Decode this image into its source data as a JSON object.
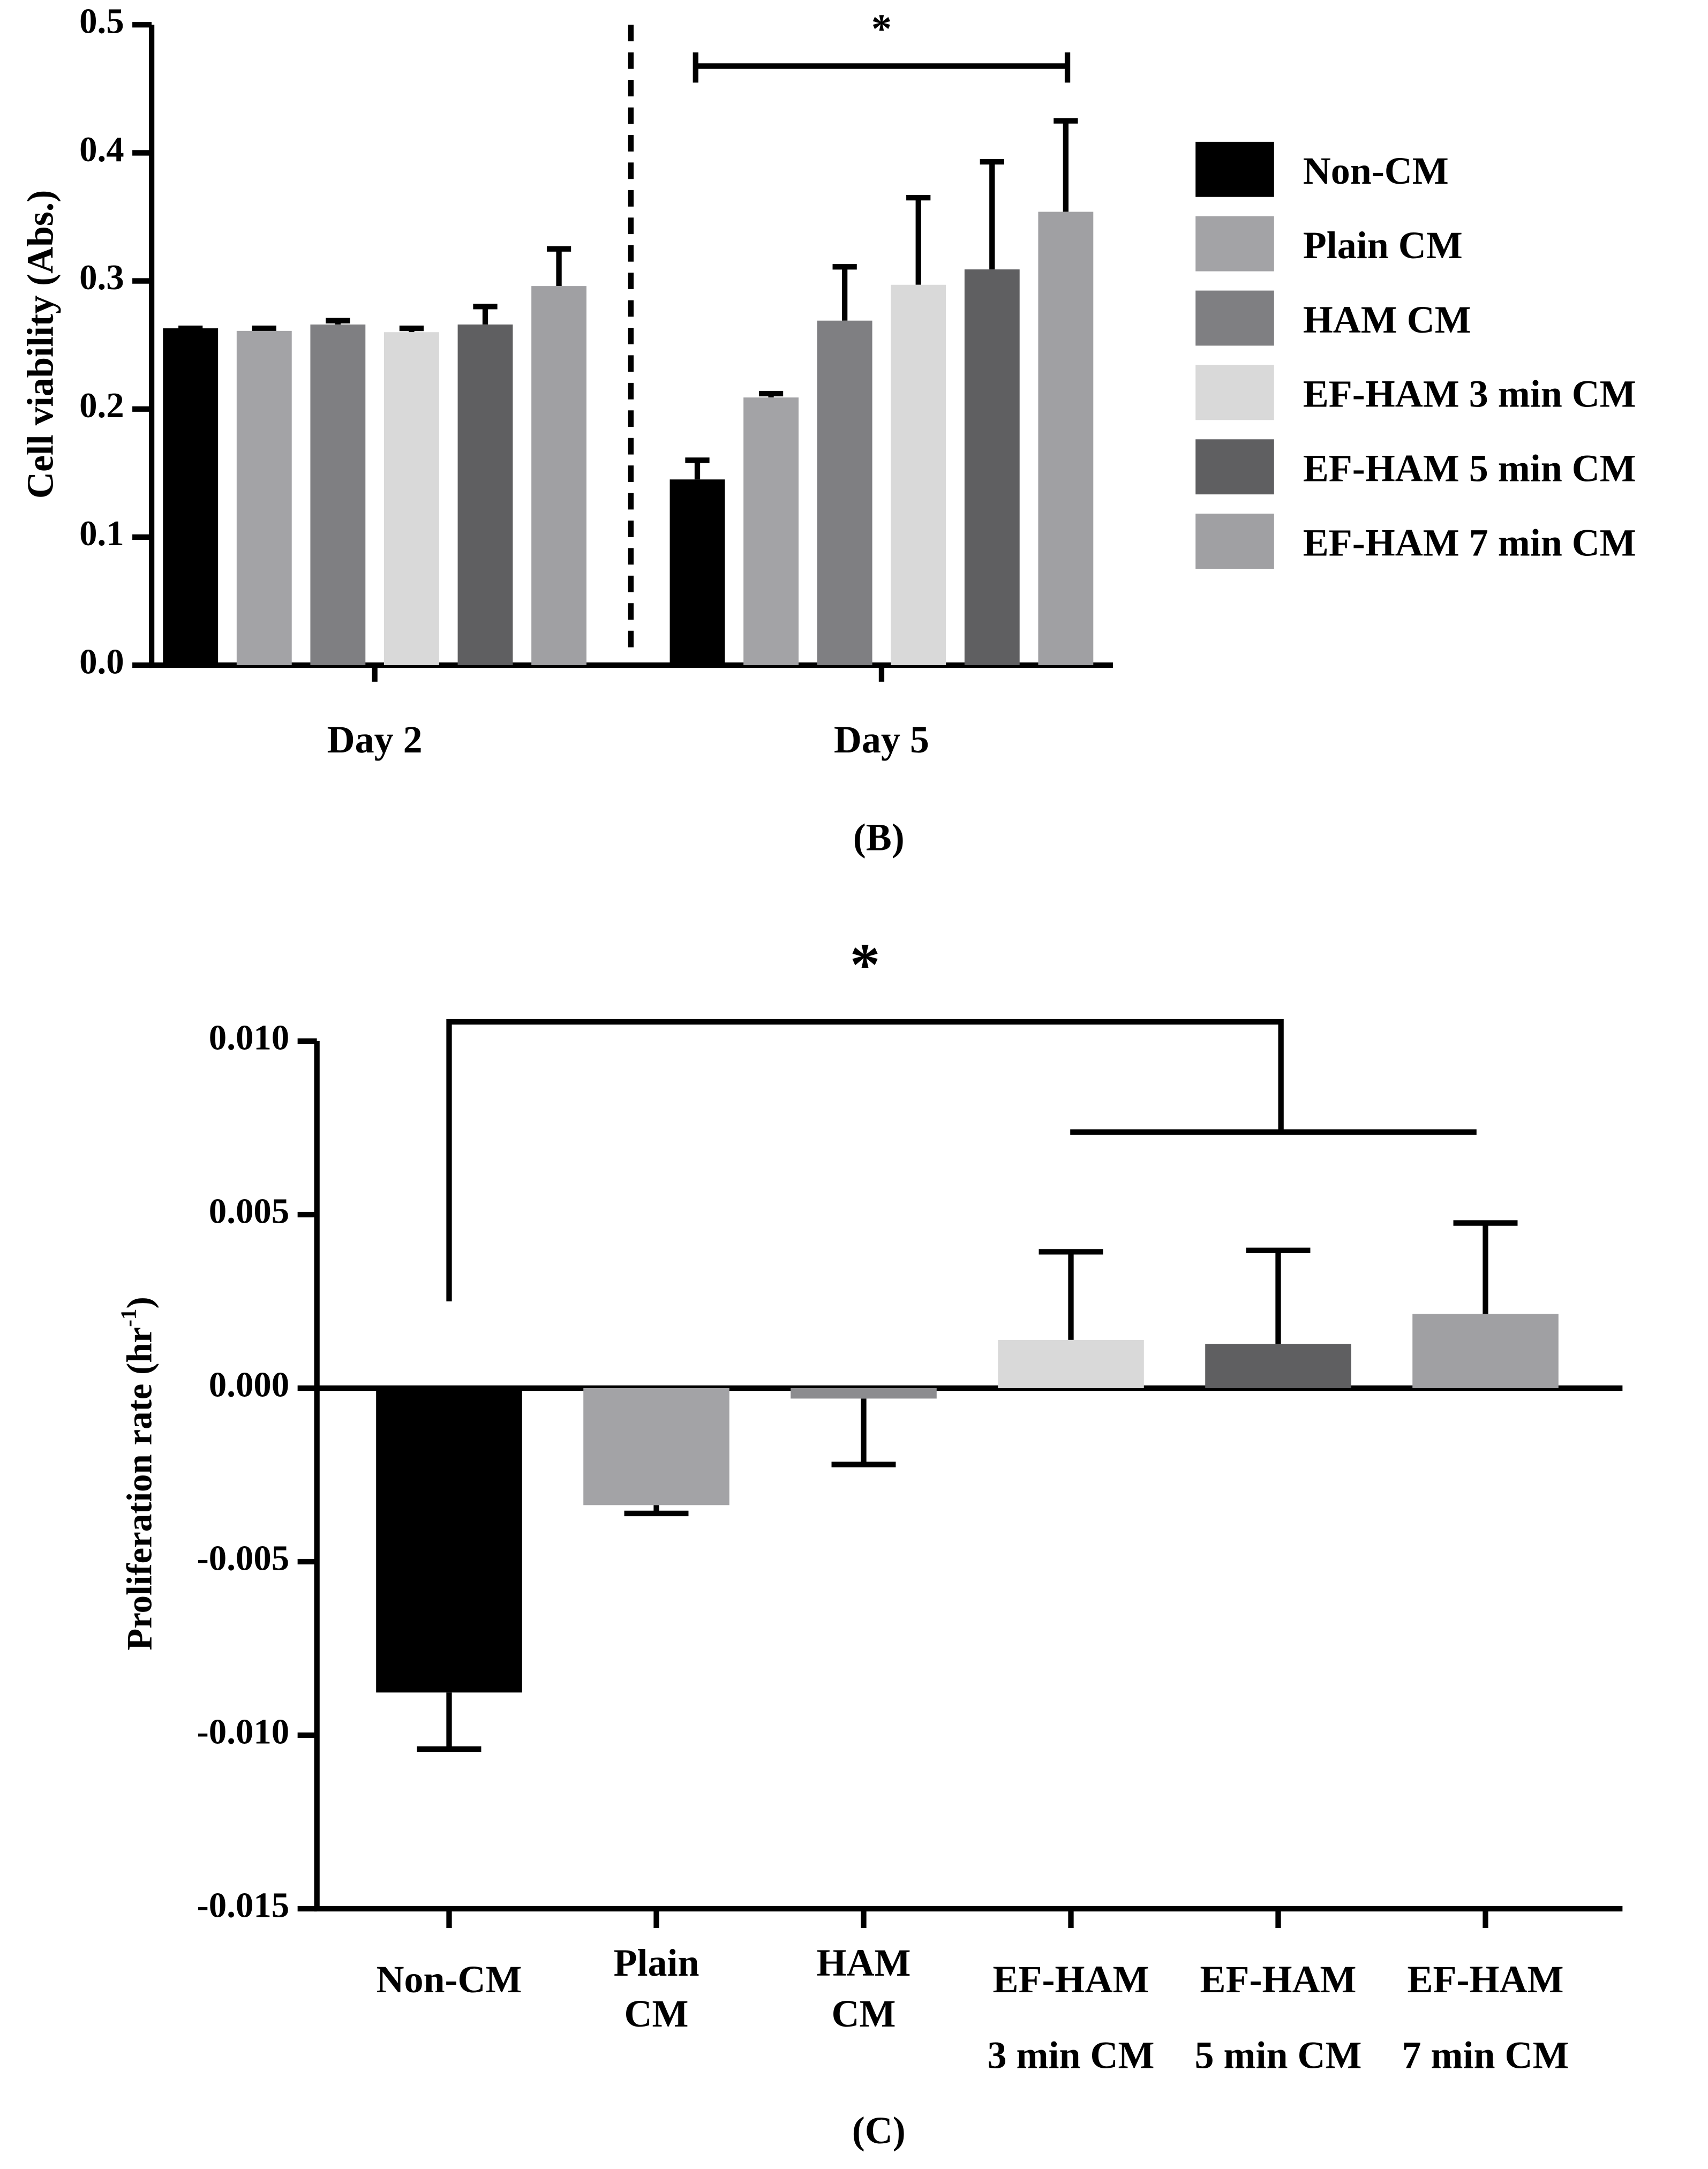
{
  "chart_data": [
    {
      "type": "bar",
      "y_label": "Cell viability (Abs.)",
      "caption": "(B)",
      "categories": [
        "Day 2",
        "Day 5"
      ],
      "series": [
        {
          "name": "Non-CM",
          "color": "#000000",
          "values": [
            0.263,
            0.145
          ],
          "errors": [
            0,
            0.015
          ]
        },
        {
          "name": "Plain CM",
          "color": "#a3a3a6",
          "values": [
            0.261,
            0.209
          ],
          "errors": [
            0.002,
            0.003
          ]
        },
        {
          "name": "HAM CM",
          "color": "#7f7f82",
          "values": [
            0.266,
            0.269
          ],
          "errors": [
            0.003,
            0.042
          ]
        },
        {
          "name": "EF-HAM 3 min CM",
          "color": "#d9d9d9",
          "values": [
            0.26,
            0.297
          ],
          "errors": [
            0.003,
            0.068
          ]
        },
        {
          "name": "EF-HAM 5 min CM",
          "color": "#5f5f61",
          "values": [
            0.266,
            0.309
          ],
          "errors": [
            0.014,
            0.084
          ]
        },
        {
          "name": "EF-HAM 7 min CM",
          "color": "#a0a0a3",
          "values": [
            0.296,
            0.354
          ],
          "errors": [
            0.029,
            0.071
          ]
        }
      ],
      "ylim": [
        0,
        0.5
      ],
      "yticks": [
        {
          "value": 0,
          "label": "0.0"
        },
        0.1,
        0.2,
        0.3,
        0.4,
        0.5
      ],
      "annotation": "*",
      "legend": "right"
    },
    {
      "type": "bar",
      "y_label": [
        "Proliferation rate (hr",
        "-1",
        ")"
      ],
      "caption": "(C)",
      "categories": [
        "Non-CM",
        "Plain CM",
        "HAM CM",
        "EF-HAM 3 min CM",
        "EF-HAM 5 min CM",
        "EF-HAM 7 min CM"
      ],
      "values": [
        -0.00877,
        -0.00337,
        -0.0003,
        0.00139,
        0.00127,
        0.00214
      ],
      "errors": [
        0.00163,
        0.00024,
        0.0019,
        0.00254,
        0.0027,
        0.00262
      ],
      "colors": [
        "#000000",
        "#a3a3a6",
        "#8c8c8f",
        "#d9d9d9",
        "#5f5f61",
        "#a0a0a3"
      ],
      "ylim": [
        -0.015,
        0.01
      ],
      "yticks": [
        {
          "value": 0.01,
          "label": "0.010"
        },
        0.005,
        {
          "value": 0,
          "label": "0.000"
        },
        -0.005,
        {
          "value": -0.01,
          "label": "-0.010"
        },
        -0.015
      ],
      "annotation": "*"
    }
  ]
}
